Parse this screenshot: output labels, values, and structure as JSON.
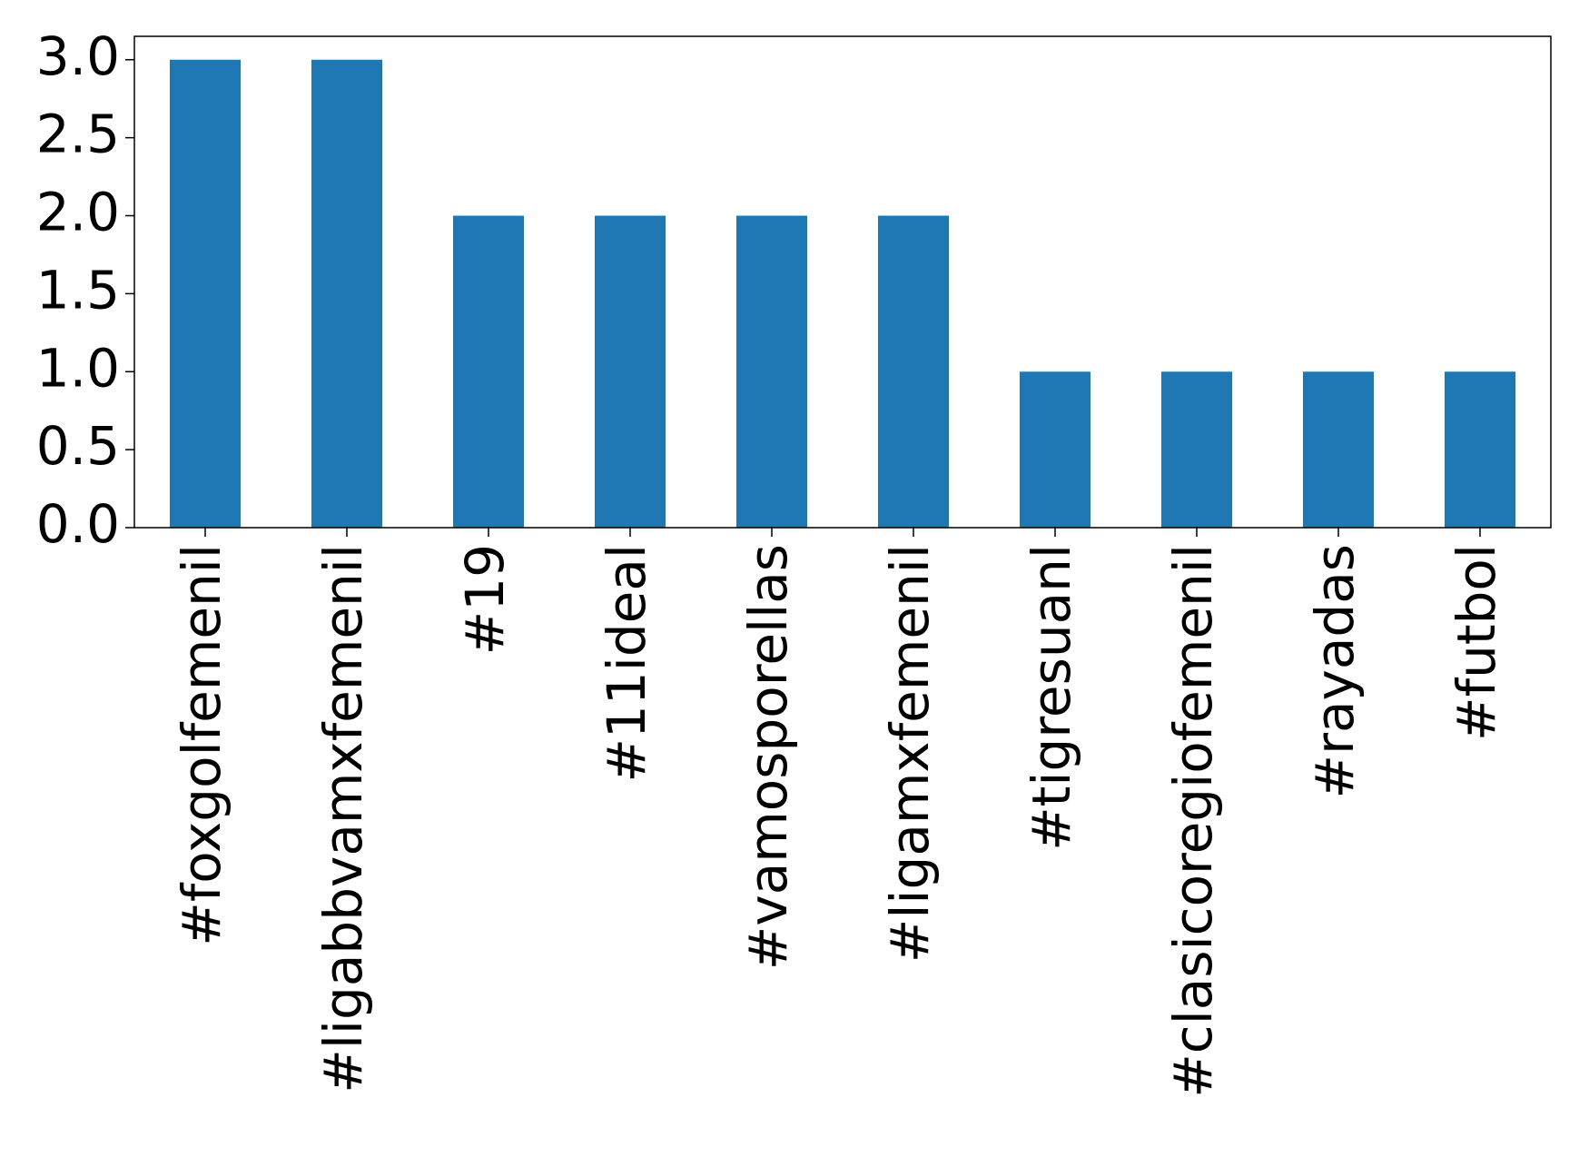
{
  "chart_data": {
    "type": "bar",
    "categories": [
      "#foxgolfemenil",
      "#ligabbvamxfemenil",
      "#19",
      "#11ideal",
      "#vamosporellas",
      "#ligamxfemenil",
      "#tigresuanl",
      "#clasicoregiofemenil",
      "#rayadas",
      "#futbol"
    ],
    "values": [
      3,
      3,
      2,
      2,
      2,
      2,
      1,
      1,
      1,
      1
    ],
    "color": "#1f77b4",
    "ylim": [
      0,
      3.15
    ],
    "yticks": [
      {
        "value": 0,
        "label": "0.0"
      },
      {
        "value": 0.5,
        "label": "0.5"
      },
      {
        "value": 1,
        "label": "1.0"
      },
      {
        "value": 1.5,
        "label": "1.5"
      },
      {
        "value": 2,
        "label": "2.0"
      },
      {
        "value": 2.5,
        "label": "2.5"
      },
      {
        "value": 3,
        "label": "3.0"
      }
    ],
    "grid": false
  }
}
